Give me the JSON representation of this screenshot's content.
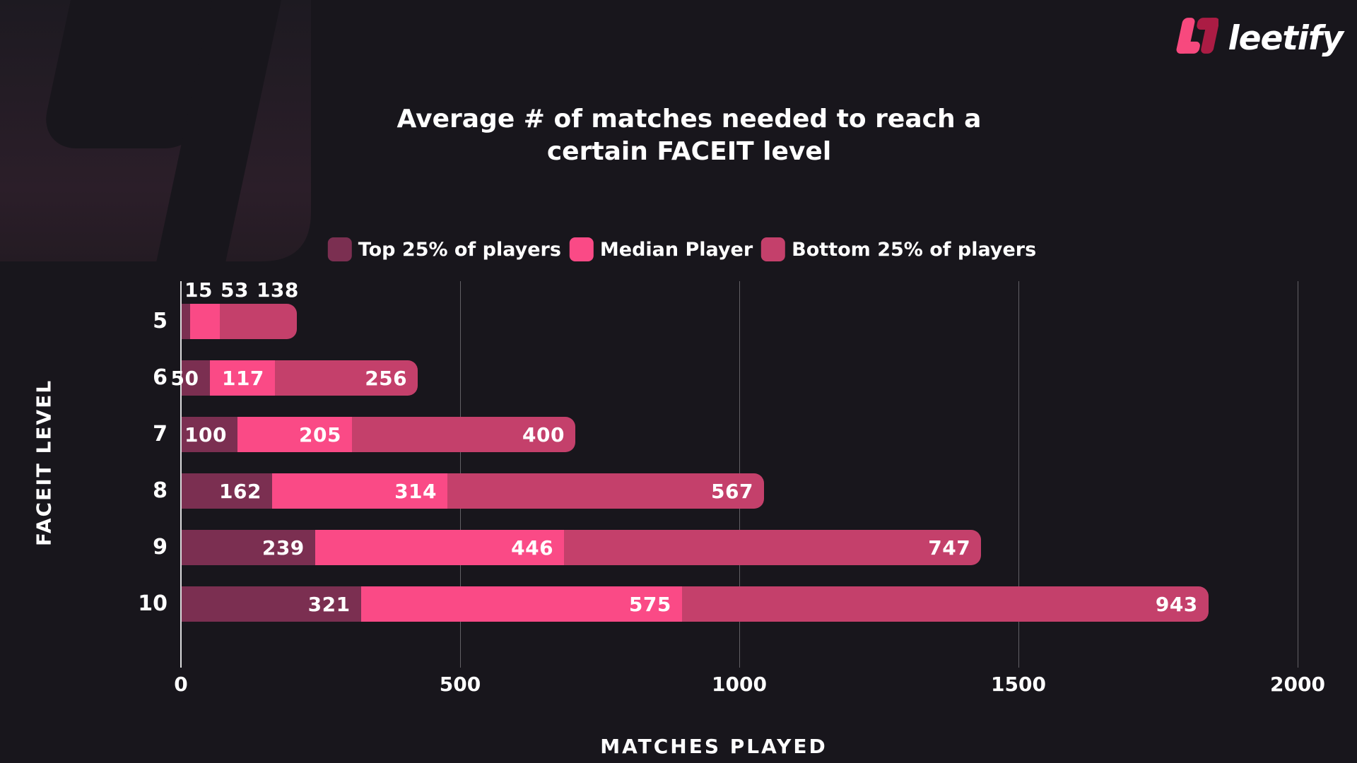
{
  "logo": {
    "brand": "leetify"
  },
  "title": {
    "line1": "Average # of matches needed to reach a",
    "line2": "certain FACEIT level"
  },
  "legend": [
    {
      "label": "Top 25% of players",
      "color": "#7b2f51"
    },
    {
      "label": "Median Player",
      "color": "#fa4a86"
    },
    {
      "label": "Bottom 25% of players",
      "color": "#c4406b"
    }
  ],
  "axes": {
    "x_title": "MATCHES PLAYED",
    "y_title": "FACEIT LEVEL"
  },
  "chart_data": {
    "type": "bar",
    "orientation": "horizontal",
    "stacked": true,
    "title": "Average # of matches needed to reach a certain FACEIT level",
    "xlabel": "MATCHES PLAYED",
    "ylabel": "FACEIT LEVEL",
    "categories": [
      "5",
      "6",
      "7",
      "8",
      "9",
      "10"
    ],
    "series": [
      {
        "name": "Top 25% of players",
        "color": "#7b2f51",
        "values": [
          15,
          50,
          100,
          162,
          239,
          321
        ]
      },
      {
        "name": "Median Player",
        "color": "#fa4a86",
        "values": [
          53,
          117,
          205,
          314,
          446,
          575
        ]
      },
      {
        "name": "Bottom 25% of players",
        "color": "#c4406b",
        "values": [
          138,
          256,
          400,
          567,
          747,
          943
        ]
      }
    ],
    "xlim": [
      0,
      2000
    ],
    "xticks": [
      0,
      500,
      1000,
      1500,
      2000
    ],
    "grid": "vertical-only",
    "legend_position": "top-center"
  },
  "colors": {
    "background": "#18161c",
    "text": "#ffffff",
    "gridline": "rgba(255,255,255,0.32)",
    "axis_line": "rgba(255,255,255,0.85)",
    "logo_pink": "#f7497e",
    "logo_crimson": "#ab1c44",
    "watermark_panel": "#2b1e29"
  }
}
